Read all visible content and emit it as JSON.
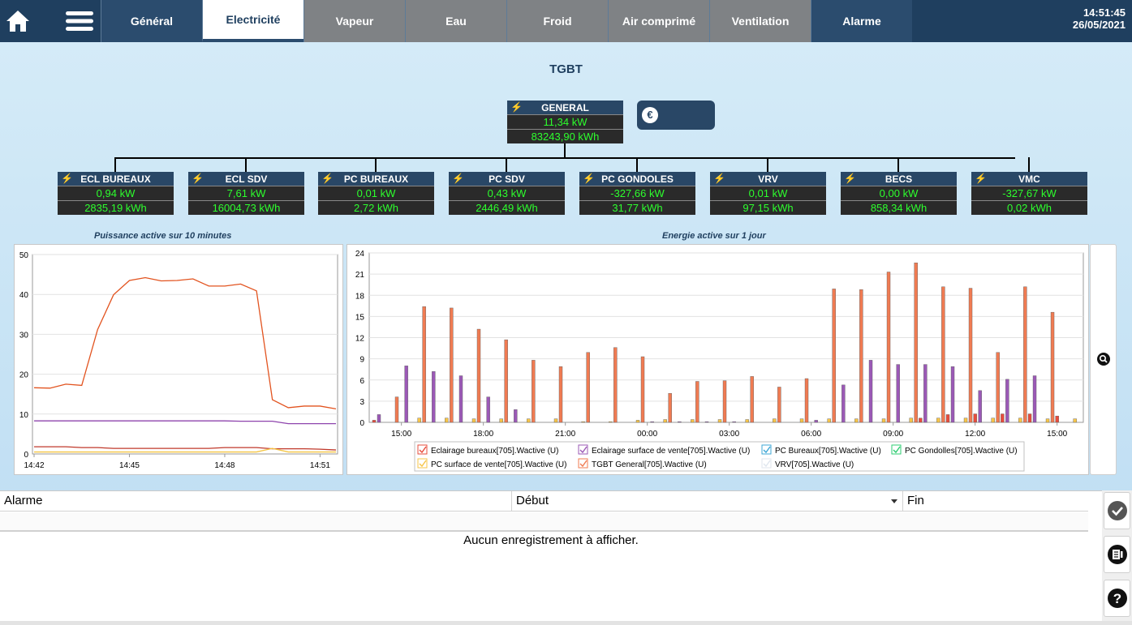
{
  "nav": {
    "tabs": [
      {
        "label": "Général",
        "style": "blue"
      },
      {
        "label": "Electricité",
        "style": "active"
      },
      {
        "label": "Vapeur",
        "style": "gray"
      },
      {
        "label": "Eau",
        "style": "gray"
      },
      {
        "label": "Froid",
        "style": "gray"
      },
      {
        "label": "Air comprimé",
        "style": "gray"
      },
      {
        "label": "Ventilation",
        "style": "gray"
      },
      {
        "label": "Alarme",
        "style": "blue"
      }
    ],
    "time": "14:51:45",
    "date": "26/05/2021"
  },
  "page_title": "TGBT",
  "general": {
    "name": "GENERAL",
    "power": "11,34 kW",
    "energy": "83243,90 kWh"
  },
  "meters": [
    {
      "name": "ECL BUREAUX",
      "power": "0,94 kW",
      "energy": "2835,19 kWh"
    },
    {
      "name": "ECL SDV",
      "power": "7,61 kW",
      "energy": "16004,73 kWh"
    },
    {
      "name": "PC BUREAUX",
      "power": "0,01 kW",
      "energy": "2,72 kWh"
    },
    {
      "name": "PC SDV",
      "power": "0,43 kW",
      "energy": "2446,49 kWh"
    },
    {
      "name": "PC GONDOLES",
      "power": "-327,66 kW",
      "energy": "31,77 kWh"
    },
    {
      "name": "VRV",
      "power": "0,01 kW",
      "energy": "97,15 kWh"
    },
    {
      "name": "BECS",
      "power": "0,00 kW",
      "energy": "858,34 kWh"
    },
    {
      "name": "VMC",
      "power": "-327,67 kW",
      "energy": "0,02 kWh"
    }
  ],
  "captions": {
    "left": "Puissance active sur 10 minutes",
    "right": "Energie active sur 1 jour"
  },
  "chart_data": [
    {
      "type": "line",
      "title": "Puissance active sur 10 minutes",
      "ylim": [
        0,
        50
      ],
      "yticks": [
        0,
        10,
        20,
        30,
        40,
        50
      ],
      "xticks": [
        "14:42",
        "14:45",
        "14:48",
        "14:51"
      ],
      "x": [
        0,
        0.5,
        1,
        1.5,
        2,
        2.5,
        3,
        3.5,
        4,
        4.5,
        5,
        5.5,
        6,
        6.5,
        7,
        7.5,
        8,
        8.5,
        9,
        9.5
      ],
      "series": [
        {
          "color": "#e2531f",
          "values": [
            16.6,
            16.5,
            17.5,
            17.2,
            31.2,
            39.9,
            43.5,
            44.2,
            43.4,
            43.5,
            43.9,
            42.1,
            42.1,
            42.6,
            40.9,
            13.6,
            11.6,
            12,
            12,
            11.3
          ]
        },
        {
          "color": "#8e44ad",
          "values": [
            8.3,
            8.3,
            8.3,
            8.3,
            8.3,
            8.3,
            8.3,
            8.3,
            8.3,
            8.3,
            8.3,
            8.3,
            8.3,
            8.2,
            8.2,
            8.2,
            7.6,
            7.6,
            7.6,
            7.6
          ]
        },
        {
          "color": "#c0392b",
          "values": [
            1.8,
            1.8,
            1.8,
            1.6,
            1.6,
            1.4,
            1.4,
            1.4,
            1.4,
            1.4,
            1.4,
            1.4,
            1.6,
            1.6,
            1.6,
            1.3,
            1.3,
            1.3,
            1.2,
            1.0
          ]
        },
        {
          "color": "#f4c542",
          "values": [
            0.5,
            0.5,
            0.5,
            0.5,
            0.5,
            0.5,
            0.5,
            0.5,
            0.5,
            0.5,
            0.5,
            0.5,
            0.5,
            0.5,
            0.5,
            1.4,
            0.5,
            0.5,
            0.5,
            0.5
          ]
        }
      ]
    },
    {
      "type": "bar",
      "title": "Energie active sur 1 jour",
      "ylim": [
        0,
        24
      ],
      "yticks": [
        0,
        3,
        6,
        9,
        12,
        15,
        18,
        21,
        24
      ],
      "xticks": [
        "15:00",
        "18:00",
        "21:00",
        "00:00",
        "03:00",
        "06:00",
        "09:00",
        "12:00",
        "15:00"
      ],
      "categories": [
        "14:00",
        "15:00",
        "16:00",
        "17:00",
        "18:00",
        "19:00",
        "20:00",
        "21:00",
        "22:00",
        "23:00",
        "00:00",
        "01:00",
        "02:00",
        "03:00",
        "04:00",
        "05:00",
        "06:00",
        "07:00",
        "08:00",
        "09:00",
        "10:00",
        "11:00",
        "12:00",
        "13:00",
        "14:00",
        "15:00"
      ],
      "series": [
        {
          "name": "Eclairage bureaux[705].Wactive (U)",
          "color": "#e74c3c",
          "values": [
            0.3,
            0,
            0,
            0,
            0,
            0,
            0,
            0,
            0,
            0,
            0,
            0,
            0,
            0,
            0,
            0,
            0,
            0,
            0,
            0,
            0.6,
            1.1,
            1.2,
            1.2,
            1.2,
            0.9
          ]
        },
        {
          "name": "Eclairage surface de vente[705].Wactive (U)",
          "color": "#9b59b6",
          "values": [
            1.1,
            8.0,
            7.2,
            6.6,
            3.6,
            1.8,
            0,
            0,
            0,
            0,
            0.1,
            0.1,
            0.1,
            0.1,
            0,
            0,
            0.3,
            5.3,
            8.8,
            8.2,
            8.2,
            7.9,
            4.5,
            6.1,
            6.6,
            0
          ]
        },
        {
          "name": "PC Bureaux[705].Wactive (U)",
          "color": "#3fa7d6",
          "values": [
            0,
            0,
            0,
            0,
            0,
            0,
            0,
            0,
            0,
            0,
            0,
            0,
            0,
            0,
            0,
            0,
            0,
            0,
            0,
            0,
            0,
            0,
            0,
            0,
            0,
            0
          ]
        },
        {
          "name": "PC Gondolles[705].Wactive (U)",
          "color": "#2ecc71",
          "values": [
            0,
            0,
            0,
            0,
            0,
            0,
            0,
            0,
            0,
            0,
            0,
            0,
            0,
            0,
            0,
            0,
            0,
            0,
            0,
            0,
            0,
            0,
            0,
            0,
            0,
            0
          ]
        },
        {
          "name": "PC surface de vente[705].Wactive (U)",
          "color": "#f7c548",
          "values": [
            0,
            0.6,
            0.6,
            0.5,
            0.5,
            0.5,
            0.5,
            0.1,
            0.1,
            0.3,
            0.4,
            0.4,
            0.4,
            0.4,
            0.5,
            0.5,
            0.5,
            0.5,
            0.5,
            0.6,
            0.6,
            0.6,
            0.6,
            0.6,
            0.5,
            0.5
          ]
        },
        {
          "name": "TGBT General[705].Wactive (U)",
          "color": "#f07b52",
          "values": [
            3.6,
            16.4,
            16.2,
            13.2,
            11.7,
            8.8,
            7.9,
            9.9,
            10.6,
            9.3,
            4.1,
            5.8,
            5.9,
            6.5,
            5.0,
            6.2,
            18.9,
            18.8,
            21.3,
            22.6,
            19.2,
            19.0,
            9.9,
            19.2,
            15.6,
            0
          ]
        },
        {
          "name": "VRV[705].Wactive (U)",
          "color": "#dfe6ee",
          "values": [
            0,
            0,
            0,
            0,
            0,
            0,
            0,
            0,
            0,
            0,
            0,
            0,
            0,
            0,
            0,
            0,
            0,
            0,
            0,
            0,
            0,
            0,
            0,
            0,
            0,
            0
          ]
        }
      ]
    }
  ],
  "alarm_table": {
    "columns": [
      "Alarme",
      "Début",
      "Fin"
    ],
    "empty_text": "Aucun enregistrement à afficher."
  }
}
